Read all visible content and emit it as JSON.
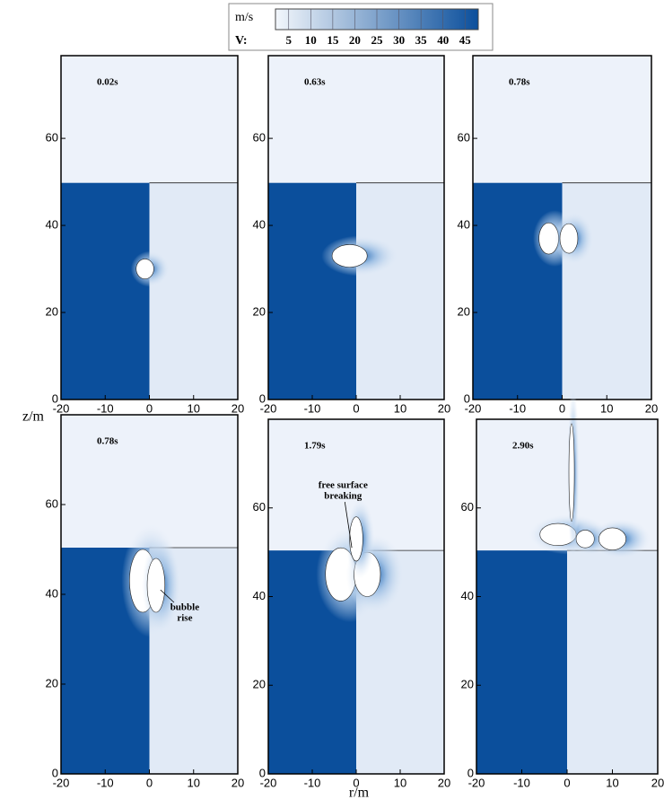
{
  "colorbar": {
    "unit": "m/s",
    "label": "V:",
    "clim": [
      2,
      48
    ],
    "ticks": [
      5,
      10,
      15,
      20,
      25,
      30,
      35,
      40,
      45
    ]
  },
  "y_axis_label": "z/m",
  "x_axis_label": "r/m",
  "panels": [
    {
      "time": "0.02s",
      "xlim": [
        -20,
        20
      ],
      "ylim": [
        0,
        79
      ],
      "xticks": [
        -20,
        -10,
        0,
        10,
        20
      ],
      "yticks": [
        0,
        20,
        40,
        60
      ]
    },
    {
      "time": "0.63s",
      "xlim": [
        -20,
        20
      ],
      "ylim": [
        0,
        79
      ],
      "xticks": [
        -20,
        -10,
        0,
        10,
        20
      ],
      "yticks": [
        0,
        20,
        40,
        60
      ]
    },
    {
      "time": "0.78s",
      "xlim": [
        -20,
        20
      ],
      "ylim": [
        0,
        79
      ],
      "xticks": [
        -20,
        -10,
        0,
        10,
        20
      ],
      "yticks": [
        0,
        20,
        40,
        60
      ]
    },
    {
      "time": "0.78s",
      "xlim": [
        -20,
        20
      ],
      "ylim": [
        0,
        80
      ],
      "xticks": [
        -20,
        -10,
        0,
        10,
        20
      ],
      "yticks": [
        0,
        20,
        40,
        60
      ],
      "annotation": [
        "bubble",
        "rise"
      ]
    },
    {
      "time": "1.79s",
      "xlim": [
        -20,
        20
      ],
      "ylim": [
        0,
        80
      ],
      "xticks": [
        -20,
        -10,
        0,
        10,
        20
      ],
      "yticks": [
        0,
        20,
        40,
        60
      ],
      "annotation": [
        "free surface",
        "breaking"
      ]
    },
    {
      "time": "2.90s",
      "xlim": [
        -20,
        20
      ],
      "ylim": [
        0,
        80
      ],
      "xticks": [
        -20,
        -10,
        0,
        10,
        20
      ],
      "yticks": [
        0,
        20,
        40,
        60
      ]
    }
  ]
}
